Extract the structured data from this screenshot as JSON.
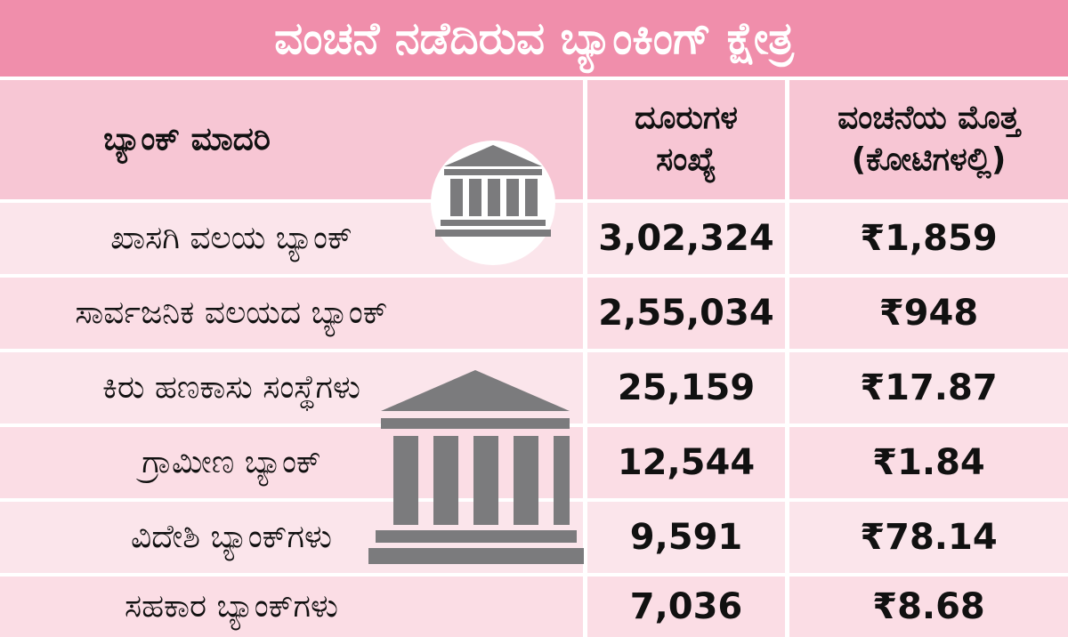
{
  "title": "ವಂಚನೆ ನಡೆದಿರುವ ಬ್ಯಾಂಕಿಂಗ್ ಕ್ಷೇತ್ರ",
  "header": {
    "columns": [
      [
        "ಬ್ಯಾಂಕ್ ಮಾದರಿ"
      ],
      [
        "ದೂರುಗಳ",
        "ಸಂಖ್ಯೆ"
      ],
      [
        "ವಂಚನೆಯ ಮೊತ್ತ",
        "(ಕೋಟಿಗಳಲ್ಲಿ)"
      ]
    ]
  },
  "table": {
    "rows": [
      [
        "ಖಾಸಗಿ ವಲಯ ಬ್ಯಾಂಕ್",
        "3,02,324",
        "₹1,859"
      ],
      [
        "ಸಾರ್ವಜನಿಕ ವಲಯದ ಬ್ಯಾಂಕ್",
        "2,55,034",
        "₹948"
      ],
      [
        "ಕಿರು ಹಣಕಾಸು ಸಂಸ್ಥೆಗಳು",
        "25,159",
        "₹17.87"
      ],
      [
        "ಗ್ರಾಮೀಣ ಬ್ಯಾಂಕ್",
        "12,544",
        "₹1.84"
      ],
      [
        "ವಿದೇಶಿ ಬ್ಯಾಂಕ್‌ಗಳು",
        "9,591",
        "₹78.14"
      ],
      [
        "ಸಹಕಾರ ಬ್ಯಾಂಕ್‌ಗಳು",
        "7,036",
        "₹8.68"
      ]
    ]
  }
}
